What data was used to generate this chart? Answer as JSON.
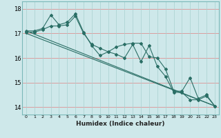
{
  "xlabel": "Humidex (Indice chaleur)",
  "background_color": "#cee8ea",
  "line_color": "#2a6e65",
  "grid_color_major": "#f0b0b0",
  "grid_color_minor": "#d0e8e8",
  "xlim": [
    -0.5,
    23.5
  ],
  "ylim": [
    13.7,
    18.3
  ],
  "yticks": [
    14,
    15,
    16,
    17,
    18
  ],
  "xticks": [
    0,
    1,
    2,
    3,
    4,
    5,
    6,
    7,
    8,
    9,
    10,
    11,
    12,
    13,
    14,
    15,
    16,
    17,
    18,
    19,
    20,
    21,
    22,
    23
  ],
  "line1_x": [
    0,
    1,
    2,
    3,
    4,
    5,
    6,
    7,
    8,
    9,
    10,
    11,
    12,
    13,
    14,
    15,
    16,
    17,
    18,
    19,
    20,
    21,
    22,
    23
  ],
  "line1_y": [
    17.1,
    17.1,
    17.2,
    17.75,
    17.35,
    17.45,
    17.8,
    17.05,
    16.5,
    16.1,
    16.25,
    16.45,
    16.55,
    16.6,
    16.6,
    16.05,
    16.0,
    15.55,
    14.65,
    14.65,
    15.2,
    14.35,
    14.5,
    14.05
  ],
  "line2_x": [
    0,
    1,
    2,
    3,
    4,
    5,
    6,
    7,
    8,
    9,
    10,
    11,
    12,
    13,
    14,
    15,
    16,
    17,
    18,
    19,
    20,
    21,
    22,
    23
  ],
  "line2_y": [
    17.05,
    17.05,
    17.15,
    17.3,
    17.3,
    17.35,
    17.7,
    17.0,
    16.55,
    16.4,
    16.25,
    16.15,
    16.0,
    16.55,
    15.85,
    16.5,
    15.65,
    15.25,
    14.6,
    14.6,
    14.3,
    14.3,
    14.45,
    14.05
  ],
  "line3_x": [
    0,
    23
  ],
  "line3_y": [
    17.1,
    14.05
  ],
  "line4_x": [
    0,
    23
  ],
  "line4_y": [
    17.0,
    14.05
  ]
}
